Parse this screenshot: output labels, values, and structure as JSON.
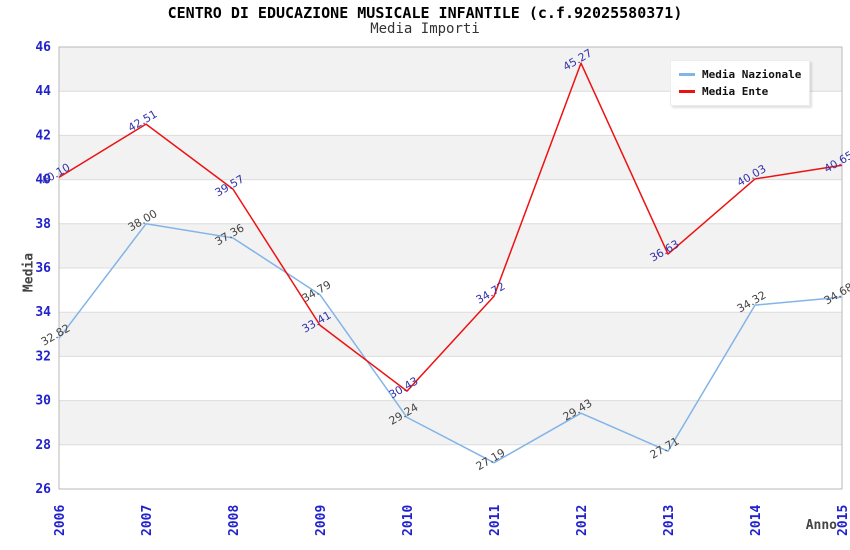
{
  "chart_data": {
    "type": "line",
    "title": "CENTRO DI EDUCAZIONE MUSICALE INFANTILE (c.f.92025580371)",
    "subtitle": "Media Importi",
    "xlabel": "Anno",
    "ylabel": "Media",
    "categories": [
      2006,
      2007,
      2008,
      2009,
      2010,
      2011,
      2012,
      2013,
      2014,
      2015
    ],
    "ylim": [
      26,
      46
    ],
    "ytick_step": 2,
    "grid": "horizontal-bands-alternating",
    "legend_position": "top-right",
    "series": [
      {
        "name": "Media Nazionale",
        "color": "#82b4e8",
        "label_color": "#444444",
        "values": [
          32.82,
          38.0,
          37.36,
          34.79,
          29.24,
          27.19,
          29.43,
          27.71,
          34.32,
          34.68
        ]
      },
      {
        "name": "Media Ente",
        "color": "#ee1111",
        "label_color": "#3333aa",
        "values": [
          40.1,
          42.51,
          39.57,
          33.41,
          30.43,
          34.72,
          45.27,
          36.63,
          40.03,
          40.65
        ]
      }
    ],
    "colors": {
      "band": "#f2f2f2",
      "band_alt": "#ffffff",
      "grid_line": "#dcdcdc",
      "plot_border": "#b9b9b9",
      "tick_label": "#2222cc",
      "axis_title": "#444444"
    }
  }
}
